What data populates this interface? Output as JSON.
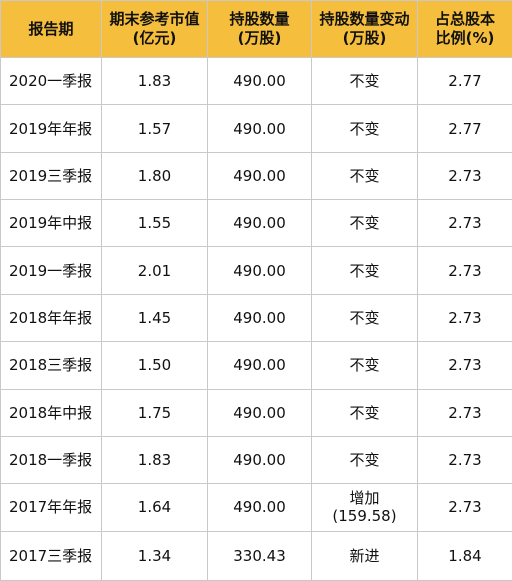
{
  "table": {
    "headers": [
      [
        "报告期"
      ],
      [
        "期末参考市值",
        "(亿元)"
      ],
      [
        "持股数量",
        "(万股)"
      ],
      [
        "持股数量变动",
        "(万股)"
      ],
      [
        "占总股本",
        "比例(%)"
      ]
    ],
    "rows": [
      {
        "period": "2020一季报",
        "market_value": "1.83",
        "shares": "490.00",
        "change": [
          "不变"
        ],
        "ratio": "2.77"
      },
      {
        "period": "2019年年报",
        "market_value": "1.57",
        "shares": "490.00",
        "change": [
          "不变"
        ],
        "ratio": "2.77"
      },
      {
        "period": "2019三季报",
        "market_value": "1.80",
        "shares": "490.00",
        "change": [
          "不变"
        ],
        "ratio": "2.73"
      },
      {
        "period": "2019年中报",
        "market_value": "1.55",
        "shares": "490.00",
        "change": [
          "不变"
        ],
        "ratio": "2.73"
      },
      {
        "period": "2019一季报",
        "market_value": "2.01",
        "shares": "490.00",
        "change": [
          "不变"
        ],
        "ratio": "2.73"
      },
      {
        "period": "2018年年报",
        "market_value": "1.45",
        "shares": "490.00",
        "change": [
          "不变"
        ],
        "ratio": "2.73"
      },
      {
        "period": "2018三季报",
        "market_value": "1.50",
        "shares": "490.00",
        "change": [
          "不变"
        ],
        "ratio": "2.73"
      },
      {
        "period": "2018年中报",
        "market_value": "1.75",
        "shares": "490.00",
        "change": [
          "不变"
        ],
        "ratio": "2.73"
      },
      {
        "period": "2018一季报",
        "market_value": "1.83",
        "shares": "490.00",
        "change": [
          "不变"
        ],
        "ratio": "2.73"
      },
      {
        "period": "2017年年报",
        "market_value": "1.64",
        "shares": "490.00",
        "change": [
          "增加",
          "(159.58)"
        ],
        "ratio": "2.73"
      },
      {
        "period": "2017三季报",
        "market_value": "1.34",
        "shares": "330.43",
        "change": [
          "新进"
        ],
        "ratio": "1.84"
      }
    ]
  },
  "colors": {
    "header_bg": "#f5be3c",
    "border": "#c9c9c9"
  }
}
